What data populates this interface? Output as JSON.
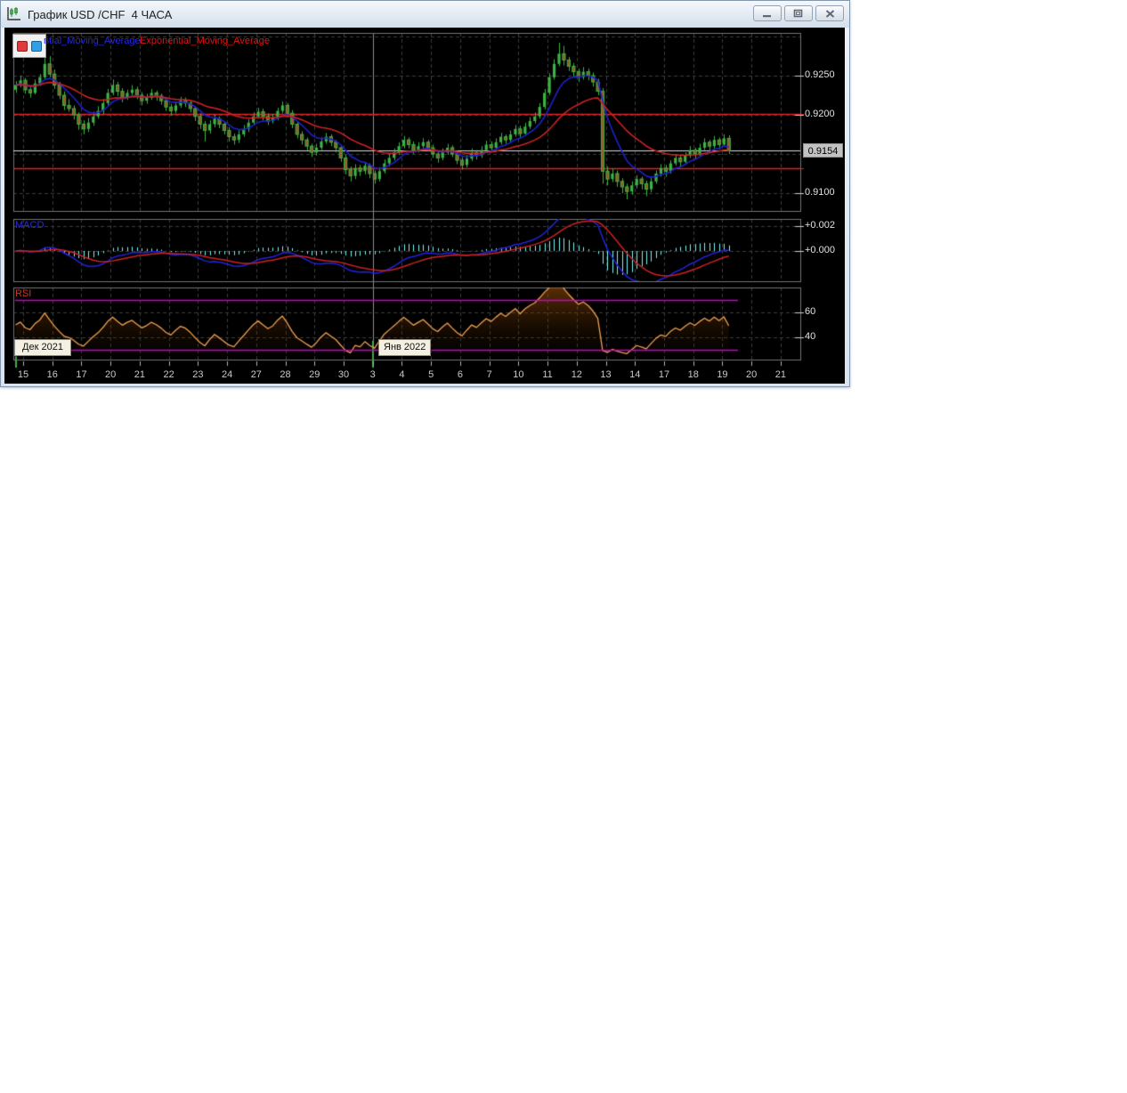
{
  "window": {
    "title": "График USD /CHF  4 ЧАСА",
    "controls": {
      "minimize": "minimize",
      "restore": "restore",
      "close": "close"
    }
  },
  "legend": {
    "ma_fast_label": "ntial_Moving_Average",
    "ma_slow_label": "Exponential_Moving_Average"
  },
  "panels": {
    "macd_label": "MACD",
    "rsi_label": "RSI"
  },
  "axis": {
    "month_dec": "Дек 2021",
    "month_jan": "Янв 2022"
  },
  "colors": {
    "bull": "#3cb347",
    "bear_fill": "#9a5a28",
    "wick": "#3cb347",
    "ema_fast": "#2020cc",
    "ema_slow": "#cc2222",
    "macd_line": "#2222dd",
    "signal_line": "#cc2222",
    "histogram": "#7df3f3",
    "rsi_line": "#f0a050",
    "rsi_level": "#cc00cc",
    "level_red": "#e02222",
    "level_current": "#d9d9d9",
    "grid": "#3c3c3c",
    "panel_border": "#757575",
    "month_line": "#8c8c8c",
    "month_tick": "#3fae49"
  },
  "chart_data": {
    "type": "candlestick",
    "symbol": "USD/CHF",
    "timeframe": "4 ЧАСА",
    "price_ticks": [
      "0.9250",
      "0.9200",
      "0.9100"
    ],
    "current_price": "0.9154",
    "macd_ticks": [
      "+0.002",
      "+0.000"
    ],
    "rsi_ticks": [
      "60",
      "40"
    ],
    "x_labels": [
      "15",
      "16",
      "17",
      "20",
      "21",
      "22",
      "23",
      "24",
      "27",
      "28",
      "29",
      "30",
      "3",
      "4",
      "5",
      "6",
      "7",
      "10",
      "11",
      "12",
      "13",
      "14",
      "17",
      "18",
      "19",
      "20",
      "21"
    ],
    "candles_per_day": 6,
    "month_start_day_indices": [
      0,
      12
    ],
    "ylim": [
      0.9077,
      0.9304
    ],
    "macd_ylim": [
      -0.0026,
      0.0026
    ],
    "rsi_lim": [
      20,
      80
    ],
    "levels": {
      "resistance": 0.9201,
      "support": 0.9132,
      "current": 0.9154,
      "rsi_upper": 70,
      "rsi_lower": 30,
      "grid_prices": [
        0.93,
        0.925,
        0.92,
        0.915,
        0.91
      ],
      "grid_macd": [
        0.002,
        0.0
      ],
      "grid_rsi": [
        60,
        40
      ]
    },
    "indicators": {
      "ema_fast_period": 8,
      "ema_slow_period": 24,
      "macd_fast": 12,
      "macd_slow": 26,
      "macd_signal": 9,
      "rsi_period": 14
    },
    "candles": [
      [
        0.9232,
        0.9243,
        0.9228,
        0.9238
      ],
      [
        0.9238,
        0.925,
        0.9235,
        0.9244
      ],
      [
        0.9244,
        0.9247,
        0.9227,
        0.9232
      ],
      [
        0.9232,
        0.9236,
        0.9222,
        0.9228
      ],
      [
        0.9228,
        0.9245,
        0.9226,
        0.924
      ],
      [
        0.924,
        0.9252,
        0.9237,
        0.9248
      ],
      [
        0.9248,
        0.9295,
        0.9245,
        0.9265
      ],
      [
        0.9265,
        0.9275,
        0.9248,
        0.9252
      ],
      [
        0.9252,
        0.9258,
        0.9233,
        0.9238
      ],
      [
        0.9238,
        0.9242,
        0.922,
        0.9225
      ],
      [
        0.9225,
        0.923,
        0.9206,
        0.9212
      ],
      [
        0.9212,
        0.922,
        0.9204,
        0.9208
      ],
      [
        0.9208,
        0.9212,
        0.9194,
        0.92
      ],
      [
        0.92,
        0.9203,
        0.9181,
        0.9188
      ],
      [
        0.9188,
        0.9193,
        0.9175,
        0.9182
      ],
      [
        0.9182,
        0.9196,
        0.9178,
        0.919
      ],
      [
        0.919,
        0.9204,
        0.9186,
        0.9198
      ],
      [
        0.9198,
        0.9211,
        0.9195,
        0.9205
      ],
      [
        0.9205,
        0.922,
        0.9201,
        0.9215
      ],
      [
        0.9215,
        0.9233,
        0.9212,
        0.9228
      ],
      [
        0.9228,
        0.9245,
        0.9225,
        0.9238
      ],
      [
        0.9238,
        0.9242,
        0.9224,
        0.923
      ],
      [
        0.923,
        0.9234,
        0.9216,
        0.9222
      ],
      [
        0.9222,
        0.9232,
        0.9219,
        0.9228
      ],
      [
        0.9228,
        0.9238,
        0.9224,
        0.9232
      ],
      [
        0.9232,
        0.9236,
        0.922,
        0.9225
      ],
      [
        0.9225,
        0.9229,
        0.9212,
        0.9218
      ],
      [
        0.9218,
        0.9227,
        0.9214,
        0.9222
      ],
      [
        0.9222,
        0.9233,
        0.9219,
        0.9228
      ],
      [
        0.9228,
        0.9231,
        0.9218,
        0.9224
      ],
      [
        0.9224,
        0.9227,
        0.9213,
        0.9218
      ],
      [
        0.9218,
        0.9221,
        0.9205,
        0.921
      ],
      [
        0.921,
        0.9214,
        0.9199,
        0.9205
      ],
      [
        0.9205,
        0.9217,
        0.9202,
        0.9212
      ],
      [
        0.9212,
        0.9223,
        0.9209,
        0.9218
      ],
      [
        0.9218,
        0.9222,
        0.921,
        0.9215
      ],
      [
        0.9215,
        0.9218,
        0.9203,
        0.9208
      ],
      [
        0.9208,
        0.9211,
        0.9192,
        0.9198
      ],
      [
        0.9198,
        0.9202,
        0.9182,
        0.9188
      ],
      [
        0.9188,
        0.9192,
        0.9166,
        0.918
      ],
      [
        0.918,
        0.9193,
        0.9176,
        0.9188
      ],
      [
        0.9188,
        0.92,
        0.9184,
        0.9195
      ],
      [
        0.9195,
        0.9198,
        0.9183,
        0.9188
      ],
      [
        0.9188,
        0.9191,
        0.9175,
        0.918
      ],
      [
        0.918,
        0.9184,
        0.9166,
        0.9172
      ],
      [
        0.9172,
        0.9176,
        0.9162,
        0.9168
      ],
      [
        0.9168,
        0.918,
        0.9164,
        0.9175
      ],
      [
        0.9175,
        0.9187,
        0.9172,
        0.9182
      ],
      [
        0.9182,
        0.9194,
        0.9178,
        0.919
      ],
      [
        0.919,
        0.9203,
        0.9187,
        0.9198
      ],
      [
        0.9198,
        0.9209,
        0.9195,
        0.9204
      ],
      [
        0.9204,
        0.9208,
        0.9193,
        0.9198
      ],
      [
        0.9198,
        0.9202,
        0.9187,
        0.9192
      ],
      [
        0.9192,
        0.9201,
        0.9189,
        0.9196
      ],
      [
        0.9196,
        0.9209,
        0.9193,
        0.9205
      ],
      [
        0.9205,
        0.9217,
        0.9202,
        0.9212
      ],
      [
        0.9212,
        0.9215,
        0.9197,
        0.9202
      ],
      [
        0.9202,
        0.9206,
        0.9183,
        0.9188
      ],
      [
        0.9188,
        0.9191,
        0.917,
        0.9175
      ],
      [
        0.9175,
        0.9179,
        0.9162,
        0.9168
      ],
      [
        0.9168,
        0.9171,
        0.9155,
        0.916
      ],
      [
        0.916,
        0.9163,
        0.9146,
        0.9152
      ],
      [
        0.9152,
        0.9163,
        0.9148,
        0.9158
      ],
      [
        0.9158,
        0.9171,
        0.9155,
        0.9166
      ],
      [
        0.9166,
        0.9177,
        0.9163,
        0.9172
      ],
      [
        0.9172,
        0.9175,
        0.916,
        0.9165
      ],
      [
        0.9165,
        0.9168,
        0.9152,
        0.9158
      ],
      [
        0.9158,
        0.9161,
        0.914,
        0.9145
      ],
      [
        0.9145,
        0.9149,
        0.9124,
        0.913
      ],
      [
        0.913,
        0.9134,
        0.9115,
        0.9122
      ],
      [
        0.9122,
        0.9137,
        0.9118,
        0.9132
      ],
      [
        0.9132,
        0.9136,
        0.9122,
        0.9128
      ],
      [
        0.9128,
        0.914,
        0.9124,
        0.9135
      ],
      [
        0.9135,
        0.9138,
        0.9119,
        0.9125
      ],
      [
        0.9125,
        0.9129,
        0.9112,
        0.9118
      ],
      [
        0.9118,
        0.9133,
        0.9115,
        0.9128
      ],
      [
        0.9128,
        0.9143,
        0.9125,
        0.9138
      ],
      [
        0.9138,
        0.915,
        0.9134,
        0.9145
      ],
      [
        0.9145,
        0.9157,
        0.9142,
        0.9152
      ],
      [
        0.9152,
        0.9165,
        0.9149,
        0.916
      ],
      [
        0.916,
        0.9173,
        0.9157,
        0.9168
      ],
      [
        0.9168,
        0.9171,
        0.9157,
        0.9162
      ],
      [
        0.9162,
        0.9166,
        0.915,
        0.9155
      ],
      [
        0.9155,
        0.9165,
        0.9152,
        0.916
      ],
      [
        0.916,
        0.917,
        0.9157,
        0.9165
      ],
      [
        0.9165,
        0.9168,
        0.9153,
        0.9158
      ],
      [
        0.9158,
        0.9162,
        0.9145,
        0.915
      ],
      [
        0.915,
        0.9154,
        0.9139,
        0.9145
      ],
      [
        0.9145,
        0.9157,
        0.9142,
        0.9152
      ],
      [
        0.9152,
        0.9163,
        0.9149,
        0.9158
      ],
      [
        0.9158,
        0.9161,
        0.9146,
        0.915
      ],
      [
        0.915,
        0.9153,
        0.9137,
        0.9142
      ],
      [
        0.9142,
        0.9146,
        0.913,
        0.9136
      ],
      [
        0.9136,
        0.9149,
        0.9133,
        0.9144
      ],
      [
        0.9144,
        0.9157,
        0.9141,
        0.9152
      ],
      [
        0.9152,
        0.9155,
        0.9143,
        0.9148
      ],
      [
        0.9148,
        0.916,
        0.9145,
        0.9155
      ],
      [
        0.9155,
        0.9167,
        0.9152,
        0.9162
      ],
      [
        0.9162,
        0.9166,
        0.9152,
        0.9158
      ],
      [
        0.9158,
        0.917,
        0.9155,
        0.9165
      ],
      [
        0.9165,
        0.9177,
        0.9162,
        0.9172
      ],
      [
        0.9172,
        0.9175,
        0.9163,
        0.9168
      ],
      [
        0.9168,
        0.918,
        0.9165,
        0.9175
      ],
      [
        0.9175,
        0.9187,
        0.9172,
        0.9182
      ],
      [
        0.9182,
        0.9186,
        0.9171,
        0.9176
      ],
      [
        0.9176,
        0.919,
        0.9173,
        0.9185
      ],
      [
        0.9185,
        0.9197,
        0.9182,
        0.9192
      ],
      [
        0.9192,
        0.9203,
        0.9189,
        0.9198
      ],
      [
        0.9198,
        0.9215,
        0.9195,
        0.921
      ],
      [
        0.921,
        0.9233,
        0.9207,
        0.9228
      ],
      [
        0.9228,
        0.9253,
        0.9225,
        0.9248
      ],
      [
        0.9248,
        0.9271,
        0.9245,
        0.9265
      ],
      [
        0.9265,
        0.9292,
        0.9262,
        0.9278
      ],
      [
        0.9278,
        0.9288,
        0.9263,
        0.927
      ],
      [
        0.927,
        0.9274,
        0.9256,
        0.9262
      ],
      [
        0.9262,
        0.9266,
        0.9249,
        0.9255
      ],
      [
        0.9255,
        0.9259,
        0.9242,
        0.9248
      ],
      [
        0.9248,
        0.9261,
        0.9245,
        0.9255
      ],
      [
        0.9255,
        0.9259,
        0.9244,
        0.925
      ],
      [
        0.925,
        0.9254,
        0.9236,
        0.9242
      ],
      [
        0.9242,
        0.9246,
        0.9225,
        0.923
      ],
      [
        0.923,
        0.9234,
        0.9112,
        0.9128
      ],
      [
        0.9128,
        0.9134,
        0.911,
        0.9118
      ],
      [
        0.9118,
        0.9131,
        0.9114,
        0.9125
      ],
      [
        0.9125,
        0.9129,
        0.9108,
        0.9115
      ],
      [
        0.9115,
        0.9119,
        0.91,
        0.9108
      ],
      [
        0.9108,
        0.9112,
        0.9092,
        0.9102
      ],
      [
        0.9102,
        0.9115,
        0.9098,
        0.911
      ],
      [
        0.911,
        0.9123,
        0.9106,
        0.9118
      ],
      [
        0.9118,
        0.9121,
        0.9105,
        0.9112
      ],
      [
        0.9112,
        0.9116,
        0.9096,
        0.9105
      ],
      [
        0.9105,
        0.912,
        0.9101,
        0.9115
      ],
      [
        0.9115,
        0.9129,
        0.9112,
        0.9125
      ],
      [
        0.9125,
        0.9137,
        0.9121,
        0.9132
      ],
      [
        0.9132,
        0.9136,
        0.9121,
        0.9128
      ],
      [
        0.9128,
        0.9142,
        0.9125,
        0.9138
      ],
      [
        0.9138,
        0.915,
        0.9135,
        0.9145
      ],
      [
        0.9145,
        0.9148,
        0.9134,
        0.914
      ],
      [
        0.914,
        0.9152,
        0.9137,
        0.9148
      ],
      [
        0.9148,
        0.916,
        0.9145,
        0.9155
      ],
      [
        0.9155,
        0.9158,
        0.9143,
        0.915
      ],
      [
        0.915,
        0.9163,
        0.9147,
        0.9158
      ],
      [
        0.9158,
        0.917,
        0.9155,
        0.9165
      ],
      [
        0.9165,
        0.9168,
        0.9154,
        0.916
      ],
      [
        0.916,
        0.9173,
        0.9157,
        0.9168
      ],
      [
        0.9168,
        0.9171,
        0.9156,
        0.9162
      ],
      [
        0.9162,
        0.9175,
        0.9159,
        0.917
      ],
      [
        0.917,
        0.9174,
        0.915,
        0.9154
      ]
    ]
  }
}
